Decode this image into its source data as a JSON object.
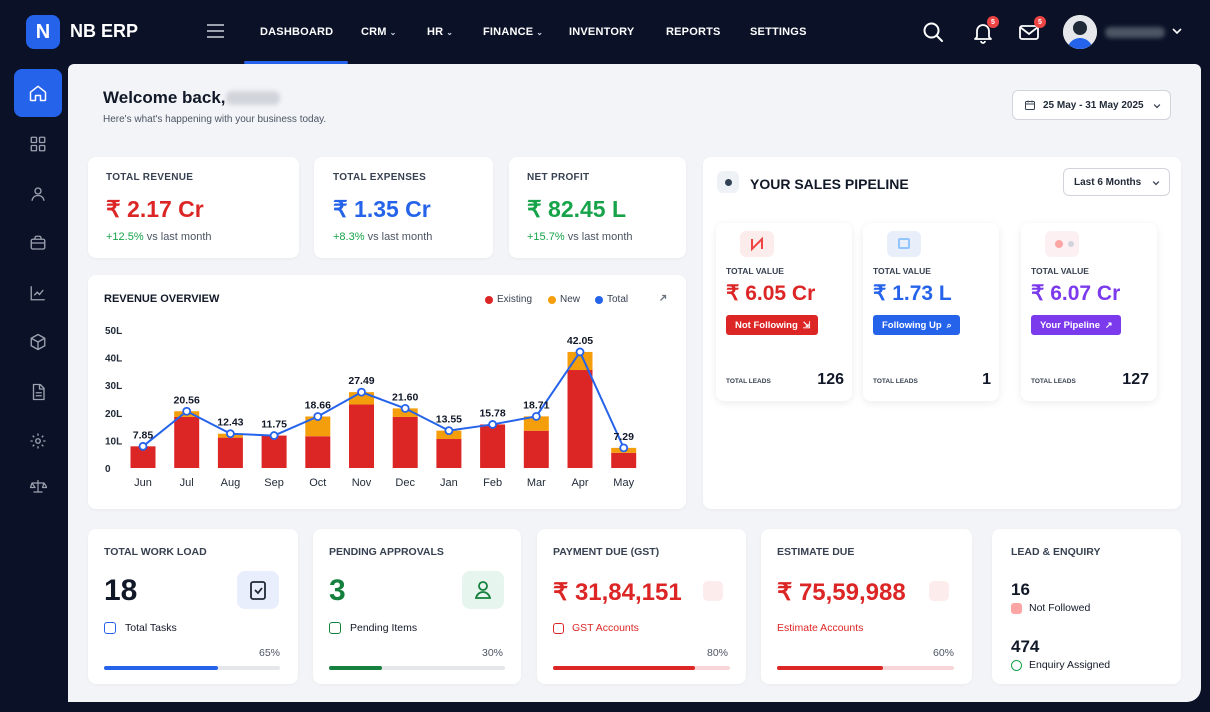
{
  "app": {
    "logo_letter": "N",
    "name": "NB ERP"
  },
  "nav": {
    "items": [
      {
        "label": "DASHBOARD",
        "dropdown": false,
        "active": true
      },
      {
        "label": "CRM",
        "dropdown": true
      },
      {
        "label": "HR",
        "dropdown": true
      },
      {
        "label": "FINANCE",
        "dropdown": true
      },
      {
        "label": "INVENTORY",
        "dropdown": false
      },
      {
        "label": "REPORTS",
        "dropdown": false
      },
      {
        "label": "SETTINGS",
        "dropdown": false
      }
    ],
    "notifications_count": "5",
    "messages_count": "5"
  },
  "sidebar": {
    "items": [
      "home-icon",
      "grid-icon",
      "user-icon",
      "briefcase-icon",
      "chart-icon",
      "box-icon",
      "document-icon",
      "gear-icon",
      "scale-icon"
    ]
  },
  "header": {
    "welcome": "Welcome back,",
    "subtitle": "Here's what's happening with your business today.",
    "date_range": "25 May - 31 May 2025"
  },
  "kpis": [
    {
      "label": "TOTAL REVENUE",
      "value": "₹ 2.17 Cr",
      "change": "+12.5%",
      "suffix": "vs last month",
      "color": "#dc2626"
    },
    {
      "label": "TOTAL EXPENSES",
      "value": "₹ 1.35 Cr",
      "change": "+8.3%",
      "suffix": "vs last month",
      "color": "#2563eb"
    },
    {
      "label": "NET PROFIT",
      "value": "₹ 82.45 L",
      "change": "+15.7%",
      "suffix": "vs last month",
      "color": "#16a34a"
    }
  ],
  "revenue": {
    "title": "REVENUE OVERVIEW",
    "legend": [
      "Existing",
      "New",
      "Total"
    ]
  },
  "chart_data": {
    "type": "bar",
    "title": "REVENUE OVERVIEW",
    "categories": [
      "Jun",
      "Jul",
      "Aug",
      "Sep",
      "Oct",
      "Nov",
      "Dec",
      "Jan",
      "Feb",
      "Mar",
      "Apr",
      "May"
    ],
    "series": [
      {
        "name": "Existing",
        "values": [
          7.85,
          18.5,
          11.0,
          11.75,
          11.5,
          23.0,
          18.5,
          10.5,
          15.78,
          13.5,
          35.5,
          5.5
        ]
      },
      {
        "name": "New",
        "values": [
          0,
          2.06,
          1.43,
          0,
          7.16,
          4.49,
          3.1,
          3.05,
          0,
          5.21,
          6.55,
          1.79
        ]
      },
      {
        "name": "Total",
        "values": [
          7.85,
          20.56,
          12.43,
          11.75,
          18.66,
          27.49,
          21.6,
          13.55,
          15.78,
          18.71,
          42.05,
          7.29
        ]
      }
    ],
    "data_labels": [
      "7.85",
      "20.56",
      "12.43",
      "11.75",
      "18.66",
      "27.49",
      "21.60",
      "13.55",
      "15.78",
      "18.71",
      "42.05",
      "7.29"
    ],
    "y_ticks": [
      "0",
      "10L",
      "20L",
      "30L",
      "40L",
      "50L"
    ],
    "ylim": [
      0,
      50
    ],
    "colors": {
      "Existing": "#dc2626",
      "New": "#f59e0b",
      "Total": "#2563eb"
    },
    "legend_position": "top-right"
  },
  "pipeline": {
    "title": "YOUR SALES PIPELINE",
    "period": "Last 6 Months",
    "cards": [
      {
        "label": "TOTAL VALUE",
        "value": "₹ 6.05 Cr",
        "color": "#dc2626",
        "button": "Not Following",
        "button_color": "#dc2626",
        "leads_label": "TOTAL LEADS",
        "leads": "126"
      },
      {
        "label": "TOTAL VALUE",
        "value": "₹ 1.73 L",
        "color": "#2563eb",
        "button": "Following Up",
        "button_color": "#2563eb",
        "leads_label": "TOTAL LEADS",
        "leads": "1"
      },
      {
        "label": "TOTAL VALUE",
        "value": "₹ 6.07 Cr",
        "color": "#7c3aed",
        "button": "Your Pipeline",
        "button_color": "#7c3aed",
        "leads_label": "TOTAL LEADS",
        "leads": "127"
      }
    ]
  },
  "bottom": [
    {
      "title": "TOTAL WORK LOAD",
      "value": "18",
      "value_color": "#111827",
      "sub": "Total Tasks",
      "percent": "65%",
      "progress": 0.65,
      "bar_color": "#2563eb"
    },
    {
      "title": "PENDING APPROVALS",
      "value": "3",
      "value_color": "#15803d",
      "sub": "Pending Items",
      "percent": "30%",
      "progress": 0.3,
      "bar_color": "#15803d"
    },
    {
      "title": "PAYMENT DUE (GST)",
      "value": "₹ 31,84,151",
      "value_color": "#dc2626",
      "sub": "GST Accounts",
      "percent": "80%",
      "progress": 0.8,
      "bar_color": "#dc2626"
    },
    {
      "title": "ESTIMATE DUE",
      "value": "₹ 75,59,988",
      "value_color": "#dc2626",
      "sub": "Estimate Accounts",
      "percent": "60%",
      "progress": 0.6,
      "bar_color": "#dc2626"
    }
  ],
  "leads": {
    "title": "LEAD & ENQUIRY",
    "not_followed_count": "16",
    "not_followed_label": "Not Followed",
    "assigned_count": "474",
    "assigned_label": "Enquiry Assigned"
  }
}
